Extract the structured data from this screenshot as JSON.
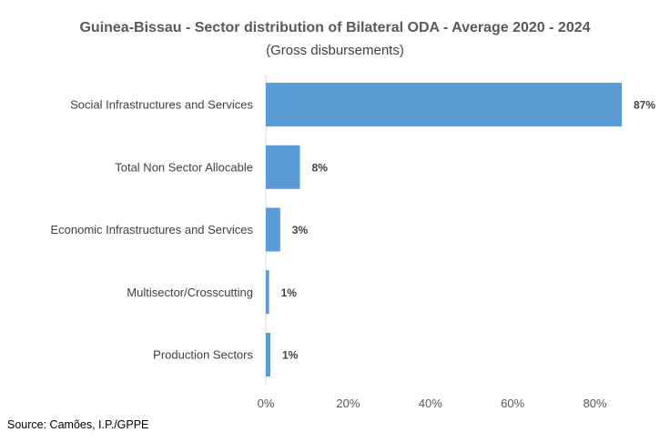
{
  "chart_data": {
    "type": "bar",
    "orientation": "horizontal",
    "title": "Guinea-Bissau - Sector distribution of Bilateral ODA - Average 2020 - 2024",
    "subtitle": "(Gross disbursements)",
    "categories": [
      "Social Infrastructures and Services",
      "Total Non Sector Allocable",
      "Economic Infrastructures and Services",
      "Multisector/Crosscutting",
      "Production Sectors"
    ],
    "values": [
      0.865,
      0.083,
      0.035,
      0.008,
      0.011
    ],
    "data_labels": [
      "87%",
      "8%",
      "3%",
      "1%",
      "1%"
    ],
    "x_ticks": [
      0,
      0.2,
      0.4,
      0.6,
      0.8
    ],
    "x_tick_labels": [
      "0%",
      "20%",
      "40%",
      "60%",
      "80%"
    ],
    "xlim": [
      0,
      0.9
    ],
    "xlabel": "",
    "ylabel": "",
    "grid": false,
    "bar_color": "#5B9BD5"
  },
  "source": "Source: Camões, I.P./GPPE"
}
